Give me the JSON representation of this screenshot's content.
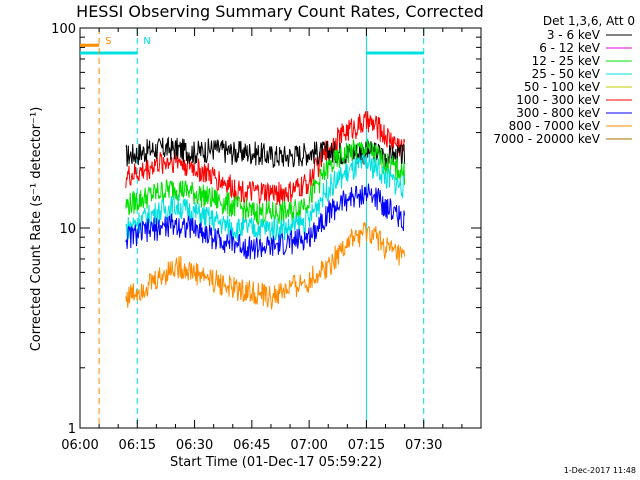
{
  "chart_data": {
    "type": "line",
    "title": "HESSI Observing Summary Count Rates, Corrected",
    "xlabel": "Start Time (01-Dec-17 05:59:22)",
    "ylabel": "Corrected Count Rate (s⁻¹ detector⁻¹)",
    "yscale": "log",
    "ylim": [
      1,
      100
    ],
    "xlim_min": [
      0,
      105
    ],
    "xtick_labels": [
      "06:00",
      "06:15",
      "06:30",
      "06:45",
      "07:00",
      "07:15",
      "07:30"
    ],
    "xtick_min": [
      0,
      15,
      30,
      45,
      60,
      75,
      90
    ],
    "ytick_labels": [
      "1",
      "10",
      "100"
    ],
    "ytick_values": [
      1,
      10,
      100
    ],
    "legend_title": "Det 1,3,6, Att 0",
    "legend_position": "right",
    "series": [
      {
        "name": "3 - 6 keV",
        "color": "#000000",
        "x": [
          12,
          16,
          20,
          25,
          30,
          35,
          40,
          45,
          50,
          55,
          60,
          65,
          70,
          75,
          78,
          80,
          85
        ],
        "y": [
          23,
          24,
          25,
          25,
          24,
          25,
          24,
          24,
          23,
          23,
          24,
          24,
          24,
          24,
          24,
          23,
          23
        ]
      },
      {
        "name": "6 - 12 keV",
        "color": "#e000e0",
        "x": [],
        "y": []
      },
      {
        "name": "12 - 25 keV",
        "color": "#00e000",
        "x": [
          12,
          16,
          20,
          25,
          30,
          35,
          40,
          45,
          50,
          55,
          60,
          65,
          70,
          75,
          78,
          80,
          85
        ],
        "y": [
          13,
          14,
          15,
          16,
          15,
          14,
          13,
          12,
          12,
          12,
          14,
          20,
          24,
          25,
          23,
          21,
          19
        ]
      },
      {
        "name": "25 - 50 keV",
        "color": "#00e0e0",
        "x": [
          12,
          16,
          20,
          25,
          30,
          35,
          40,
          45,
          50,
          55,
          60,
          65,
          70,
          75,
          78,
          80,
          85
        ],
        "y": [
          10,
          11,
          12,
          13,
          12,
          11,
          10,
          10,
          10,
          10,
          11,
          16,
          19,
          21,
          20,
          18,
          16
        ]
      },
      {
        "name": "50 - 100 keV",
        "color": "#c8c800",
        "x": [],
        "y": []
      },
      {
        "name": "100 - 300 keV",
        "color": "#ff0000",
        "x": [
          12,
          16,
          20,
          25,
          30,
          35,
          40,
          45,
          50,
          55,
          60,
          65,
          70,
          75,
          78,
          80,
          85
        ],
        "y": [
          18,
          19,
          21,
          22,
          20,
          18,
          16,
          15,
          15,
          15,
          17,
          25,
          31,
          34,
          32,
          29,
          25
        ]
      },
      {
        "name": "300 - 800 keV",
        "color": "#0000ff",
        "x": [
          12,
          16,
          20,
          25,
          30,
          35,
          40,
          45,
          50,
          55,
          60,
          65,
          70,
          75,
          78,
          80,
          85
        ],
        "y": [
          9,
          9.5,
          10,
          10.5,
          10,
          9,
          8.5,
          8,
          8,
          8.5,
          9,
          12,
          14,
          15,
          14,
          13,
          11
        ]
      },
      {
        "name": "800 - 7000 keV",
        "color": "#ff8c00",
        "x": [
          12,
          16,
          20,
          25,
          30,
          35,
          40,
          45,
          50,
          55,
          60,
          65,
          70,
          75,
          78,
          80,
          85
        ],
        "y": [
          4.5,
          5,
          5.5,
          6.5,
          6,
          5.5,
          5,
          4.8,
          4.5,
          5,
          5.5,
          6.5,
          8.5,
          9.5,
          9,
          8,
          7
        ]
      },
      {
        "name": "7000 - 20000 keV",
        "color": "#a07000",
        "x": [],
        "y": []
      }
    ],
    "markers": [
      {
        "label": "S",
        "color": "#ff8c00",
        "x_min": 5
      },
      {
        "label": "N",
        "color": "#00e0e0",
        "x_min": 15
      }
    ],
    "extra_vlines": [
      {
        "color": "#00e0e0",
        "x_min": 75
      },
      {
        "color": "#00e0e0",
        "x_min": 90
      }
    ],
    "saa_bars": [
      {
        "color": "#00e0e0",
        "x0_min": 0,
        "x1_min": 15,
        "y": 75
      },
      {
        "color": "#00e0e0",
        "x0_min": 75,
        "x1_min": 90,
        "y": 75
      },
      {
        "color": "#ff8c00",
        "x0_min": 0,
        "x1_min": 5,
        "y": 82
      }
    ]
  },
  "footer": {
    "timestamp": "1-Dec-2017 11:48"
  }
}
